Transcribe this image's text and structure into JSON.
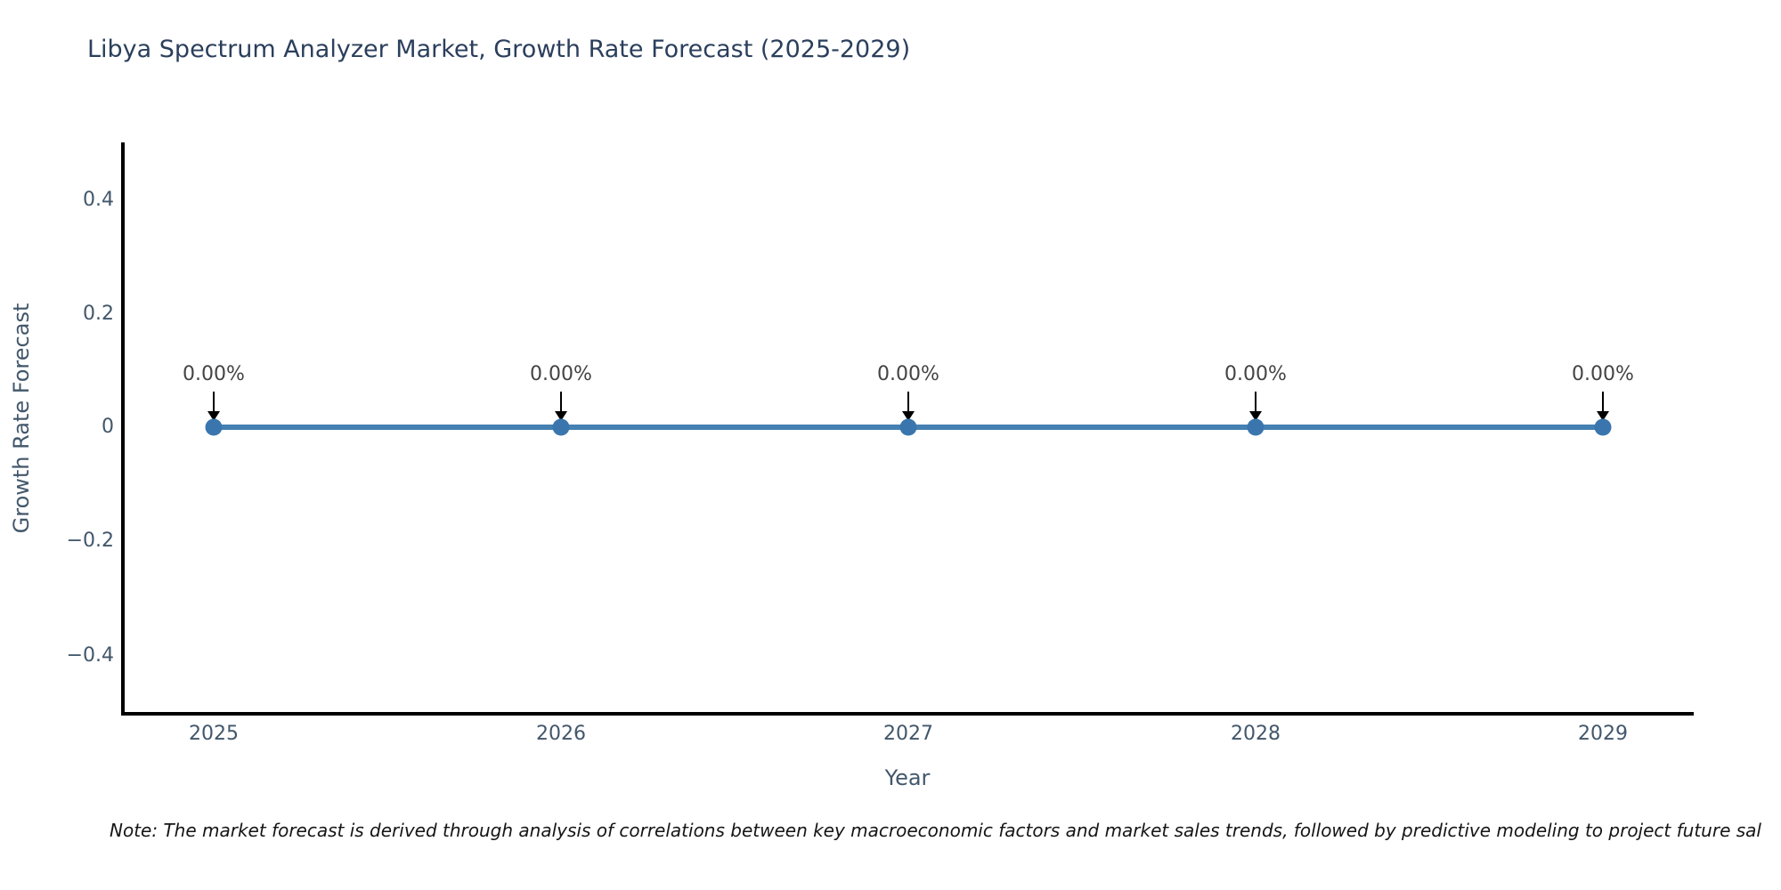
{
  "chart_data": {
    "type": "line",
    "title": "Libya Spectrum Analyzer Market, Growth Rate Forecast (2025-2029)",
    "xlabel": "Year",
    "ylabel": "Growth Rate Forecast",
    "categories": [
      "2025",
      "2026",
      "2027",
      "2028",
      "2029"
    ],
    "series": [
      {
        "name": "Growth Rate Forecast",
        "values": [
          0,
          0,
          0,
          0,
          0
        ]
      }
    ],
    "data_labels": [
      "0.00%",
      "0.00%",
      "0.00%",
      "0.00%",
      "0.00%"
    ],
    "yticks": [
      "0.4",
      "0.2",
      "0",
      "−0.2",
      "−0.4"
    ],
    "ylim": [
      -0.5,
      0.5
    ],
    "grid": false,
    "legend": "none",
    "line_color": "#4580b2",
    "marker_color": "#3a76ad",
    "axis_color": "#000000",
    "annotation_arrow_color": "#000000",
    "title_color": "#2b3f5c",
    "tick_label_color": "#42576b"
  },
  "note": "Note: The market forecast is derived through analysis of correlations between key macroeconomic factors and market sales trends, followed by predictive modeling to project future sal"
}
